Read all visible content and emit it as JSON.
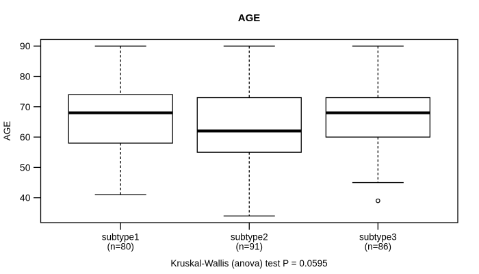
{
  "chart_data": {
    "type": "boxplot",
    "title": "AGE",
    "ylabel": "AGE",
    "xlabel": "",
    "caption": "Kruskal-Wallis (anova) test P = 0.0595",
    "ylim": [
      31.8,
      92.2
    ],
    "yticks": [
      40,
      50,
      60,
      70,
      80,
      90
    ],
    "grid": false,
    "legend": "none",
    "line_color": "#000000",
    "box_fill": "#ffffff",
    "background": "#ffffff",
    "groups": [
      {
        "label": "subtype1",
        "sublabel": "(n=80)",
        "whisker_low": 41,
        "q1": 58,
        "median": 68,
        "q3": 74,
        "whisker_high": 90,
        "outliers": []
      },
      {
        "label": "subtype2",
        "sublabel": "(n=91)",
        "whisker_low": 34,
        "q1": 55,
        "median": 62,
        "q3": 73,
        "whisker_high": 90,
        "outliers": []
      },
      {
        "label": "subtype3",
        "sublabel": "(n=86)",
        "whisker_low": 45,
        "q1": 60,
        "median": 68,
        "q3": 73,
        "whisker_high": 90,
        "outliers": [
          39
        ]
      }
    ]
  }
}
